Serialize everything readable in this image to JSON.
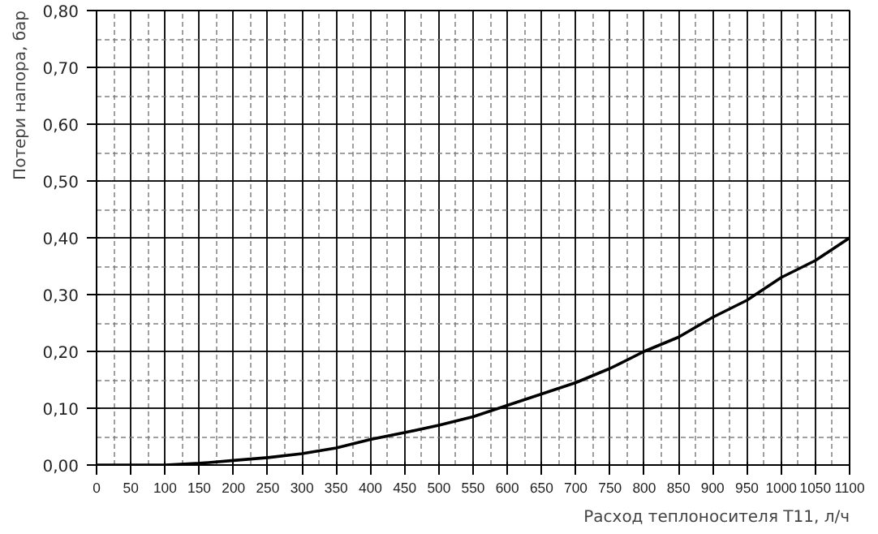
{
  "chart_data": {
    "type": "line",
    "xlabel": "Расход теплоносителя Т11, л/ч",
    "ylabel": "Потери напора, бар",
    "x": [
      0,
      50,
      100,
      150,
      200,
      250,
      300,
      350,
      400,
      450,
      500,
      550,
      600,
      650,
      700,
      750,
      800,
      850,
      900,
      950,
      1000,
      1050,
      1100
    ],
    "series": [
      {
        "color": "#000000",
        "values": [
          0,
          0,
          0,
          0.003,
          0.008,
          0.013,
          0.02,
          0.03,
          0.045,
          0.057,
          0.07,
          0.085,
          0.105,
          0.125,
          0.145,
          0.17,
          0.2,
          0.225,
          0.26,
          0.29,
          0.33,
          0.36,
          0.4
        ]
      }
    ],
    "xlim": [
      0,
      1100
    ],
    "ylim": [
      0,
      0.8
    ],
    "xticks": [
      0,
      50,
      100,
      150,
      200,
      250,
      300,
      350,
      400,
      450,
      500,
      550,
      600,
      650,
      700,
      750,
      800,
      850,
      900,
      950,
      1000,
      1050,
      1100
    ],
    "yticks": [
      {
        "value": 0,
        "label": "0,00"
      },
      {
        "value": 0.1,
        "label": "0,10"
      },
      {
        "value": 0.2,
        "label": "0,20"
      },
      {
        "value": 0.3,
        "label": "0,30"
      },
      {
        "value": 0.4,
        "label": "0,40"
      },
      {
        "value": 0.5,
        "label": "0,50"
      },
      {
        "value": 0.6,
        "label": "0,60"
      },
      {
        "value": 0.7,
        "label": "0,70"
      },
      {
        "value": 0.8,
        "label": "0,80"
      }
    ],
    "grid": true,
    "marker": "none",
    "line_style": "solid"
  }
}
